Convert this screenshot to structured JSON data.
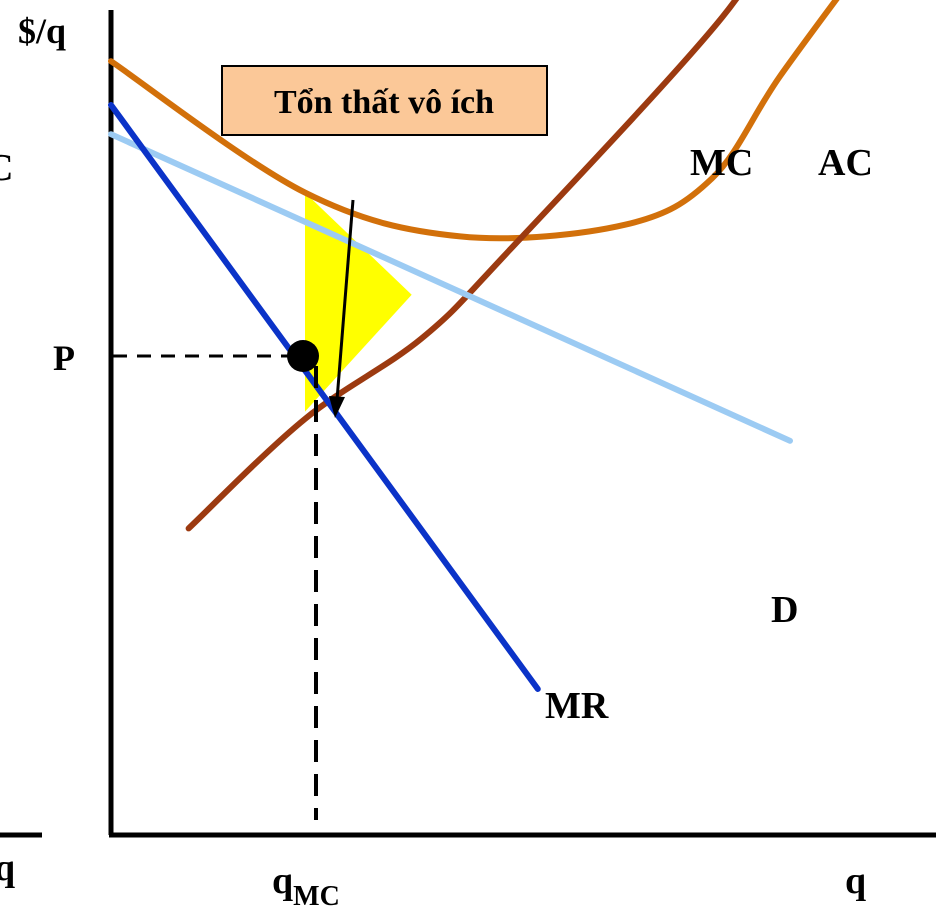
{
  "chart_data": {
    "type": "line",
    "ylabel": "$/q",
    "xlabel": "q",
    "annotation": "Tổn thất vô ích",
    "price_label": "P",
    "qty_label_main": "q",
    "qty_label_sub": "MC",
    "left_cut_letter": "C",
    "left_cut_axis_label": "q",
    "colors": {
      "MC": "#9c3a10",
      "AC": "#d2700a",
      "D": "#9ccbf3",
      "MR": "#0b33c8",
      "deadweight": "#ffff00"
    },
    "series": [
      {
        "name": "MC",
        "points": [
          [
            8,
            3
          ],
          [
            20,
            10.5
          ],
          [
            32,
            16
          ],
          [
            41,
            22
          ],
          [
            63,
            38
          ],
          [
            69,
            45
          ]
        ]
      },
      {
        "name": "AC",
        "points": [
          [
            0,
            35
          ],
          [
            20,
            26
          ],
          [
            36,
            23
          ],
          [
            53,
            23.8
          ],
          [
            62,
            27
          ],
          [
            69,
            34
          ],
          [
            79,
            43
          ]
        ]
      },
      {
        "name": "D",
        "points": [
          [
            0,
            30
          ],
          [
            70,
            9
          ]
        ]
      },
      {
        "name": "MR",
        "points": [
          [
            0,
            32
          ],
          [
            44,
            -8
          ]
        ]
      }
    ],
    "deadweight_triangle": [
      [
        20,
        26
      ],
      [
        20,
        11
      ],
      [
        31,
        19
      ]
    ]
  }
}
